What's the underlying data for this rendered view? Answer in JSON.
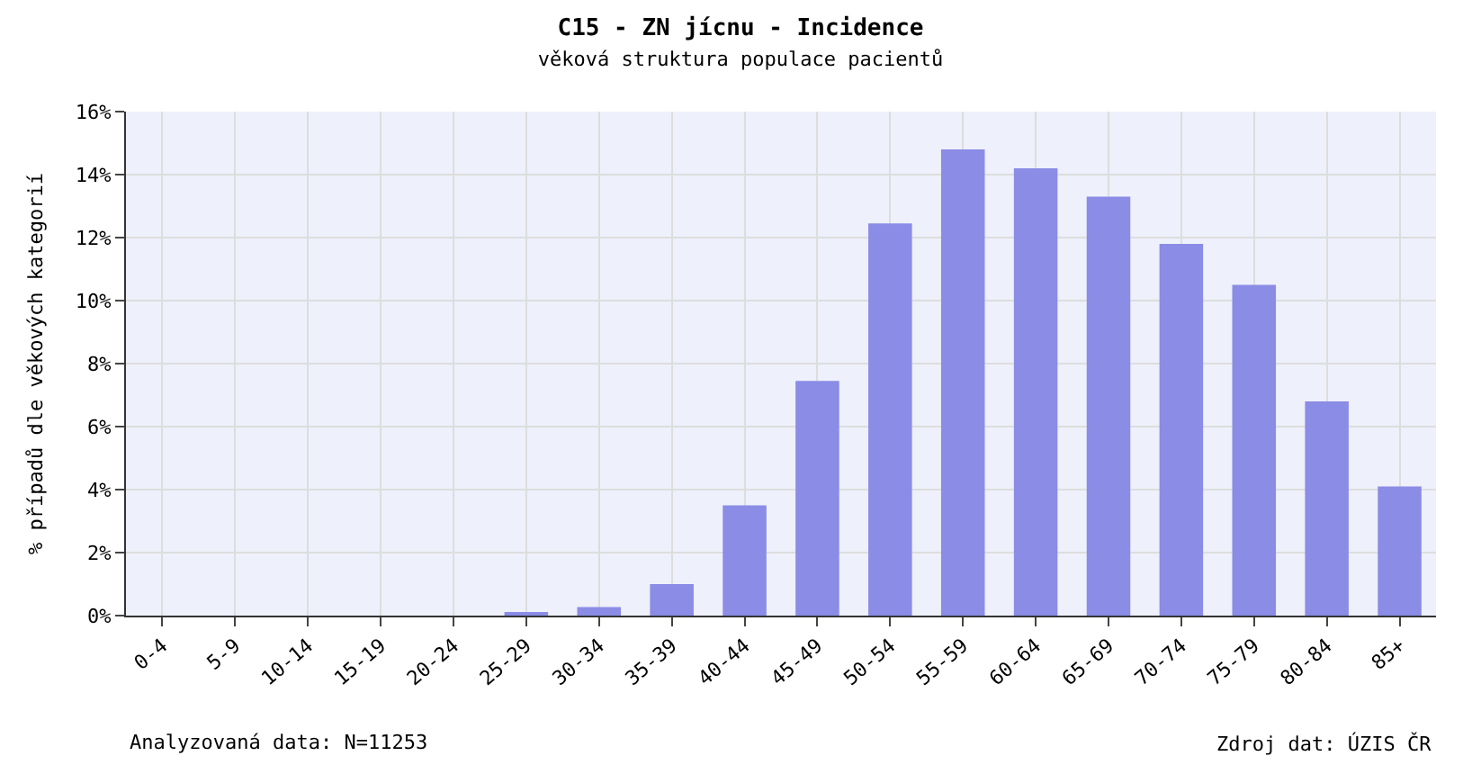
{
  "chart_data": {
    "type": "bar",
    "title": "C15 - ZN jícnu - Incidence",
    "subtitle": "věková struktura populace pacientů",
    "ylabel": "% případů dle věkových kategorií",
    "categories": [
      "0-4",
      "5-9",
      "10-14",
      "15-19",
      "20-24",
      "25-29",
      "30-34",
      "35-39",
      "40-44",
      "45-49",
      "50-54",
      "55-59",
      "60-64",
      "65-69",
      "70-74",
      "75-79",
      "80-84",
      "85+"
    ],
    "values": [
      0,
      0,
      0,
      0,
      0,
      0.1,
      0.27,
      1.0,
      3.5,
      7.45,
      12.45,
      14.8,
      14.2,
      13.3,
      11.8,
      10.5,
      6.8,
      4.1
    ],
    "color": "#8a8ce6",
    "ylim": [
      0,
      16
    ],
    "yticks": [
      {
        "value": 0,
        "label": "0%"
      },
      {
        "value": 2,
        "label": "2%"
      },
      {
        "value": 4,
        "label": "4%"
      },
      {
        "value": 6,
        "label": "6%"
      },
      {
        "value": 8,
        "label": "8%"
      },
      {
        "value": 10,
        "label": "10%"
      },
      {
        "value": 12,
        "label": "12%"
      },
      {
        "value": 14,
        "label": "14%"
      },
      {
        "value": 16,
        "label": "16%"
      }
    ],
    "grid": true,
    "annotations": [
      "Analyzovaná data: N=11253",
      "Zdroj dat: ÚZIS ČR"
    ]
  }
}
